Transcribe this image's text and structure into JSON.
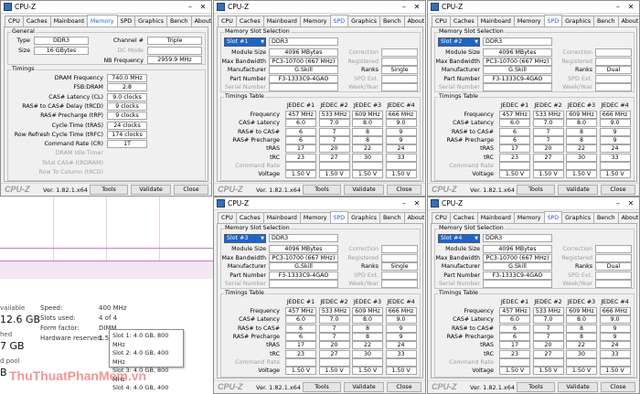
{
  "app": {
    "title": "CPU-Z",
    "logo": "CPU-Z",
    "version": "Ver. 1.82.1.x64",
    "tools": "Tools",
    "validate": "Validate",
    "close": "Close"
  },
  "tabs": [
    "CPU",
    "Caches",
    "Mainboard",
    "Memory",
    "SPD",
    "Graphics",
    "Bench",
    "About"
  ],
  "memory": {
    "general_label": "General",
    "type_label": "Type",
    "type": "DDR3",
    "size_label": "Size",
    "size": "16 GBytes",
    "channel_label": "Channel #",
    "channel": "Triple",
    "dcmode_label": "DC Mode",
    "dcmode": "",
    "nbfreq_label": "NB Frequency",
    "nbfreq": "2959.9 MHz",
    "timings_label": "Timings",
    "timings": [
      {
        "label": "DRAM Frequency",
        "value": "740.0 MHz",
        "dis": false
      },
      {
        "label": "FSB:DRAM",
        "value": "2:8",
        "dis": false
      },
      {
        "label": "CAS# Latency (CL)",
        "value": "9.0 clocks",
        "dis": false
      },
      {
        "label": "RAS# to CAS# Delay (tRCD)",
        "value": "9 clocks",
        "dis": false
      },
      {
        "label": "RAS# Precharge (tRP)",
        "value": "9 clocks",
        "dis": false
      },
      {
        "label": "Cycle Time (tRAS)",
        "value": "24 clocks",
        "dis": false
      },
      {
        "label": "Row Refresh Cycle Time (tRFC)",
        "value": "174 clocks",
        "dis": false
      },
      {
        "label": "Command Rate (CR)",
        "value": "1T",
        "dis": false
      },
      {
        "label": "DRAM Idle Timer",
        "value": "",
        "dis": true
      },
      {
        "label": "Total CAS# (tRDRAM)",
        "value": "",
        "dis": true
      },
      {
        "label": "Row To Column (tRCD)",
        "value": "",
        "dis": true
      }
    ]
  },
  "spd_labels": {
    "group": "Memory Slot Selection",
    "module_size": "Module Size",
    "max_bandwidth": "Max Bandwidth",
    "manufacturer": "Manufacturer",
    "part_number": "Part Number",
    "serial_number": "Serial Number",
    "correction": "Correction",
    "registered": "Registered",
    "ranks": "Ranks",
    "spd_ext": "SPD Ext.",
    "week_year": "Week/Year",
    "timings_table": "Timings Table",
    "row_labels": [
      "Frequency",
      "CAS# Latency",
      "RAS# to CAS#",
      "RAS# Precharge",
      "tRAS",
      "tRC",
      "Command Rate",
      "Voltage"
    ],
    "row_dis": [
      false,
      false,
      false,
      false,
      false,
      false,
      true,
      false
    ],
    "jedec": [
      "JEDEC #1",
      "JEDEC #2",
      "JEDEC #3",
      "JEDEC #4"
    ]
  },
  "spd": [
    {
      "slot": "Slot #1",
      "type": "DDR3",
      "module_size": "4096 MBytes",
      "max_bandwidth": "PC3-10700 (667 MHz)",
      "manufacturer": "G.Skill",
      "part_number": "F3-1333C9-4GAO",
      "ranks": "Single",
      "cols": [
        [
          "457 MHz",
          "6.0",
          "6",
          "6",
          "17",
          "23",
          "",
          "1.50 V"
        ],
        [
          "533 MHz",
          "7.0",
          "7",
          "7",
          "20",
          "27",
          "",
          "1.50 V"
        ],
        [
          "609 MHz",
          "8.0",
          "8",
          "8",
          "22",
          "30",
          "",
          "1.50 V"
        ],
        [
          "666 MHz",
          "9.0",
          "9",
          "9",
          "24",
          "33",
          "",
          "1.50 V"
        ]
      ]
    },
    {
      "slot": "Slot #2",
      "type": "DDR3",
      "module_size": "4096 MBytes",
      "max_bandwidth": "PC3-10700 (667 MHz)",
      "manufacturer": "G.Skill",
      "part_number": "F3-1333C9-4GAO",
      "ranks": "Dual",
      "cols": [
        [
          "457 MHz",
          "6.0",
          "6",
          "6",
          "17",
          "23",
          "",
          "1.50 V"
        ],
        [
          "533 MHz",
          "7.0",
          "7",
          "7",
          "20",
          "27",
          "",
          "1.50 V"
        ],
        [
          "609 MHz",
          "8.0",
          "8",
          "8",
          "22",
          "30",
          "",
          "1.50 V"
        ],
        [
          "666 MHz",
          "9.0",
          "9",
          "9",
          "24",
          "33",
          "",
          "1.50 V"
        ]
      ]
    },
    {
      "slot": "Slot #3",
      "type": "DDR3",
      "module_size": "4096 MBytes",
      "max_bandwidth": "PC3-10700 (667 MHz)",
      "manufacturer": "G.Skill",
      "part_number": "F3-1333C9-4GAO",
      "ranks": "Single",
      "cols": [
        [
          "457 MHz",
          "6.0",
          "6",
          "6",
          "17",
          "23",
          "",
          "1.50 V"
        ],
        [
          "533 MHz",
          "7.0",
          "7",
          "7",
          "20",
          "27",
          "",
          "1.50 V"
        ],
        [
          "609 MHz",
          "8.0",
          "8",
          "8",
          "22",
          "30",
          "",
          "1.50 V"
        ],
        [
          "666 MHz",
          "9.0",
          "9",
          "9",
          "24",
          "33",
          "",
          "1.50 V"
        ]
      ]
    },
    {
      "slot": "Slot #4",
      "type": "DDR3",
      "module_size": "4096 MBytes",
      "max_bandwidth": "PC3-10700 (667 MHz)",
      "manufacturer": "G.Skill",
      "part_number": "F3-1333C9-4GAO",
      "ranks": "Dual",
      "cols": [
        [
          "457 MHz",
          "6.0",
          "6",
          "6",
          "17",
          "23",
          "",
          "1.50 V"
        ],
        [
          "533 MHz",
          "7.0",
          "7",
          "7",
          "20",
          "27",
          "",
          "1.50 V"
        ],
        [
          "609 MHz",
          "8.0",
          "8",
          "8",
          "22",
          "30",
          "",
          "1.50 V"
        ],
        [
          "666 MHz",
          "9.0",
          "9",
          "9",
          "24",
          "33",
          "",
          "1.50 V"
        ]
      ]
    }
  ],
  "taskmanager": {
    "available_label": "vailable",
    "available_value": "12.6 GB",
    "cached_label": "hed",
    "cached_value": "7 GB",
    "pool_label": "d pool",
    "b_value": "B",
    "speed_label": "Speed:",
    "speed_value": "400 MHz",
    "slots_label": "Slots used:",
    "slots_value": "4 of 4",
    "form_label": "Form factor:",
    "form_value": "DIMM",
    "hw_label": "Hardware reserved:",
    "hw_value": "1.5",
    "tooltip": [
      "Slot 1: 4.0 GB, 800 MHz",
      "Slot 2: 4.0 GB, 400 MHz",
      "Slot 3: 4.0 GB, 800 MHz",
      "Slot 4: 4.0 GB, 400 MHz"
    ]
  },
  "watermark": "ThuThuatPhanMem.vn"
}
